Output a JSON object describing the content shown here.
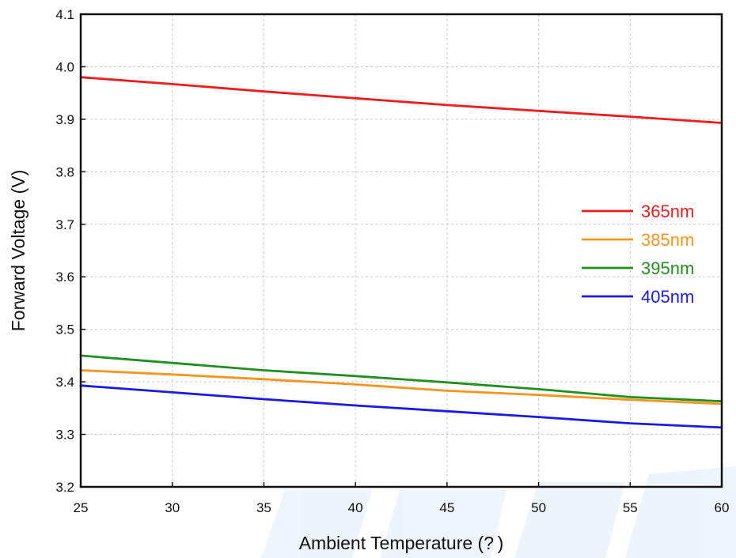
{
  "chart_data": {
    "type": "line",
    "title": "",
    "xlabel": "Ambient Temperature (? )",
    "ylabel": "Forward Voltage (V)",
    "xlim": [
      25,
      60
    ],
    "ylim": [
      3.2,
      4.1
    ],
    "x_ticks": [
      "25",
      "30",
      "35",
      "40",
      "45",
      "50",
      "55",
      "60"
    ],
    "y_ticks": [
      "3.2",
      "3.3",
      "3.4",
      "3.5",
      "3.6",
      "3.7",
      "3.8",
      "3.9",
      "4.0",
      "4.1"
    ],
    "grid": true,
    "legend_position": "right",
    "x": [
      25,
      30,
      35,
      40,
      45,
      50,
      55,
      60
    ],
    "series": [
      {
        "name": "365nm",
        "color": "#ee1c1c",
        "values": [
          3.98,
          3.967,
          3.953,
          3.94,
          3.927,
          3.916,
          3.905,
          3.893
        ]
      },
      {
        "name": "385nm",
        "color": "#f7941d",
        "values": [
          3.422,
          3.414,
          3.405,
          3.395,
          3.383,
          3.375,
          3.366,
          3.358
        ]
      },
      {
        "name": "395nm",
        "color": "#1f8f1f",
        "values": [
          3.45,
          3.436,
          3.422,
          3.411,
          3.399,
          3.386,
          3.371,
          3.363
        ]
      },
      {
        "name": "405nm",
        "color": "#1a1ae6",
        "values": [
          3.393,
          3.38,
          3.367,
          3.355,
          3.344,
          3.333,
          3.321,
          3.313
        ]
      }
    ]
  }
}
